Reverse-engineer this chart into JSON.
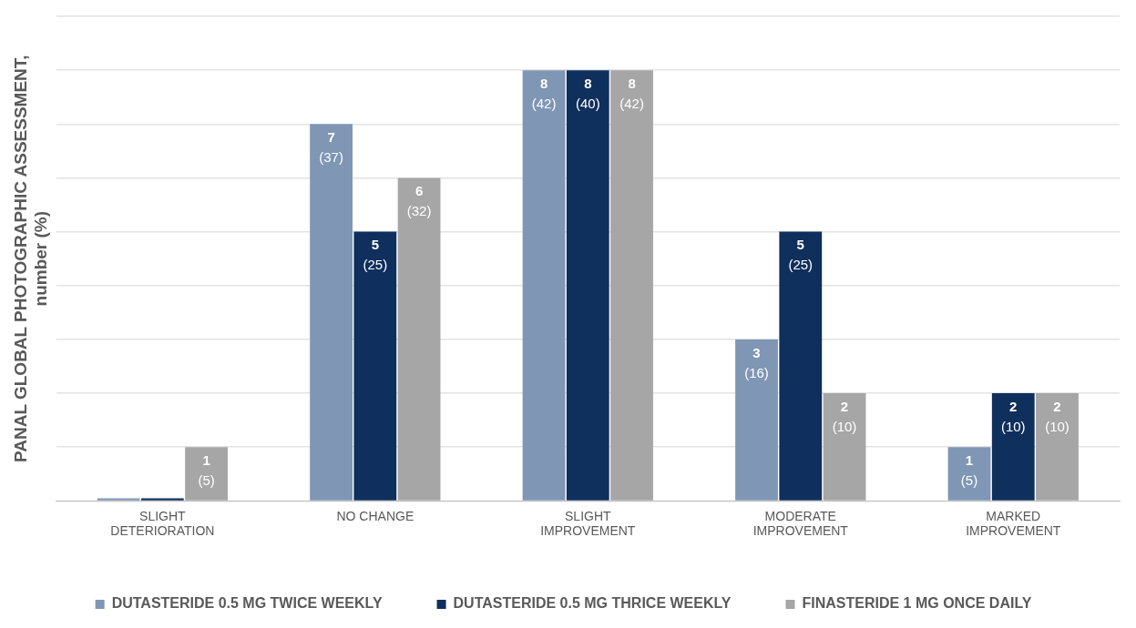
{
  "chart_data": {
    "type": "bar",
    "ylabel": "PANAL GLOBAL PHOTOGRAPHIC ASSESSMENT,\nnumber (%)",
    "categories": [
      "SLIGHT\nDETERIORATION",
      "NO CHANGE",
      "SLIGHT\nIMPROVEMENT",
      "MODERATE\nIMPROVEMENT",
      "MARKED\nIMPROVEMENT"
    ],
    "series": [
      {
        "name": "DUTASTERIDE 0.5 MG TWICE WEEKLY",
        "color": "#7f96b5",
        "values": [
          0,
          7,
          8,
          3,
          1
        ],
        "value_labels": [
          null,
          "7\n(37)",
          "8\n(42)",
          "3\n(16)",
          "1\n(5)"
        ]
      },
      {
        "name": "DUTASTERIDE 0.5 MG THRICE WEEKLY",
        "color": "#0f2f5c",
        "values": [
          0,
          5,
          8,
          5,
          2
        ],
        "value_labels": [
          null,
          "5\n(25)",
          "8\n(40)",
          "5\n(25)",
          "2\n(10)"
        ]
      },
      {
        "name": "FINASTERIDE 1 MG ONCE DAILY",
        "color": "#a6a6a6",
        "values": [
          1,
          6,
          8,
          2,
          2
        ],
        "value_labels": [
          "1\n(5)",
          "6\n(32)",
          "8\n(42)",
          "2\n(10)",
          "2\n(10)"
        ]
      }
    ],
    "ylim": [
      0,
      9
    ],
    "yticks": [
      {
        "value": 0,
        "label": null
      },
      {
        "value": 1,
        "label": null
      },
      {
        "value": 2,
        "label": null
      },
      {
        "value": 3,
        "label": null
      },
      {
        "value": 4,
        "label": null
      },
      {
        "value": 5,
        "label": null
      },
      {
        "value": 6,
        "label": null
      },
      {
        "value": 7,
        "label": null
      },
      {
        "value": 8,
        "label": null
      },
      {
        "value": 9,
        "label": null
      }
    ],
    "tick_labels": "x",
    "grid": "y",
    "legend": "bottom"
  }
}
